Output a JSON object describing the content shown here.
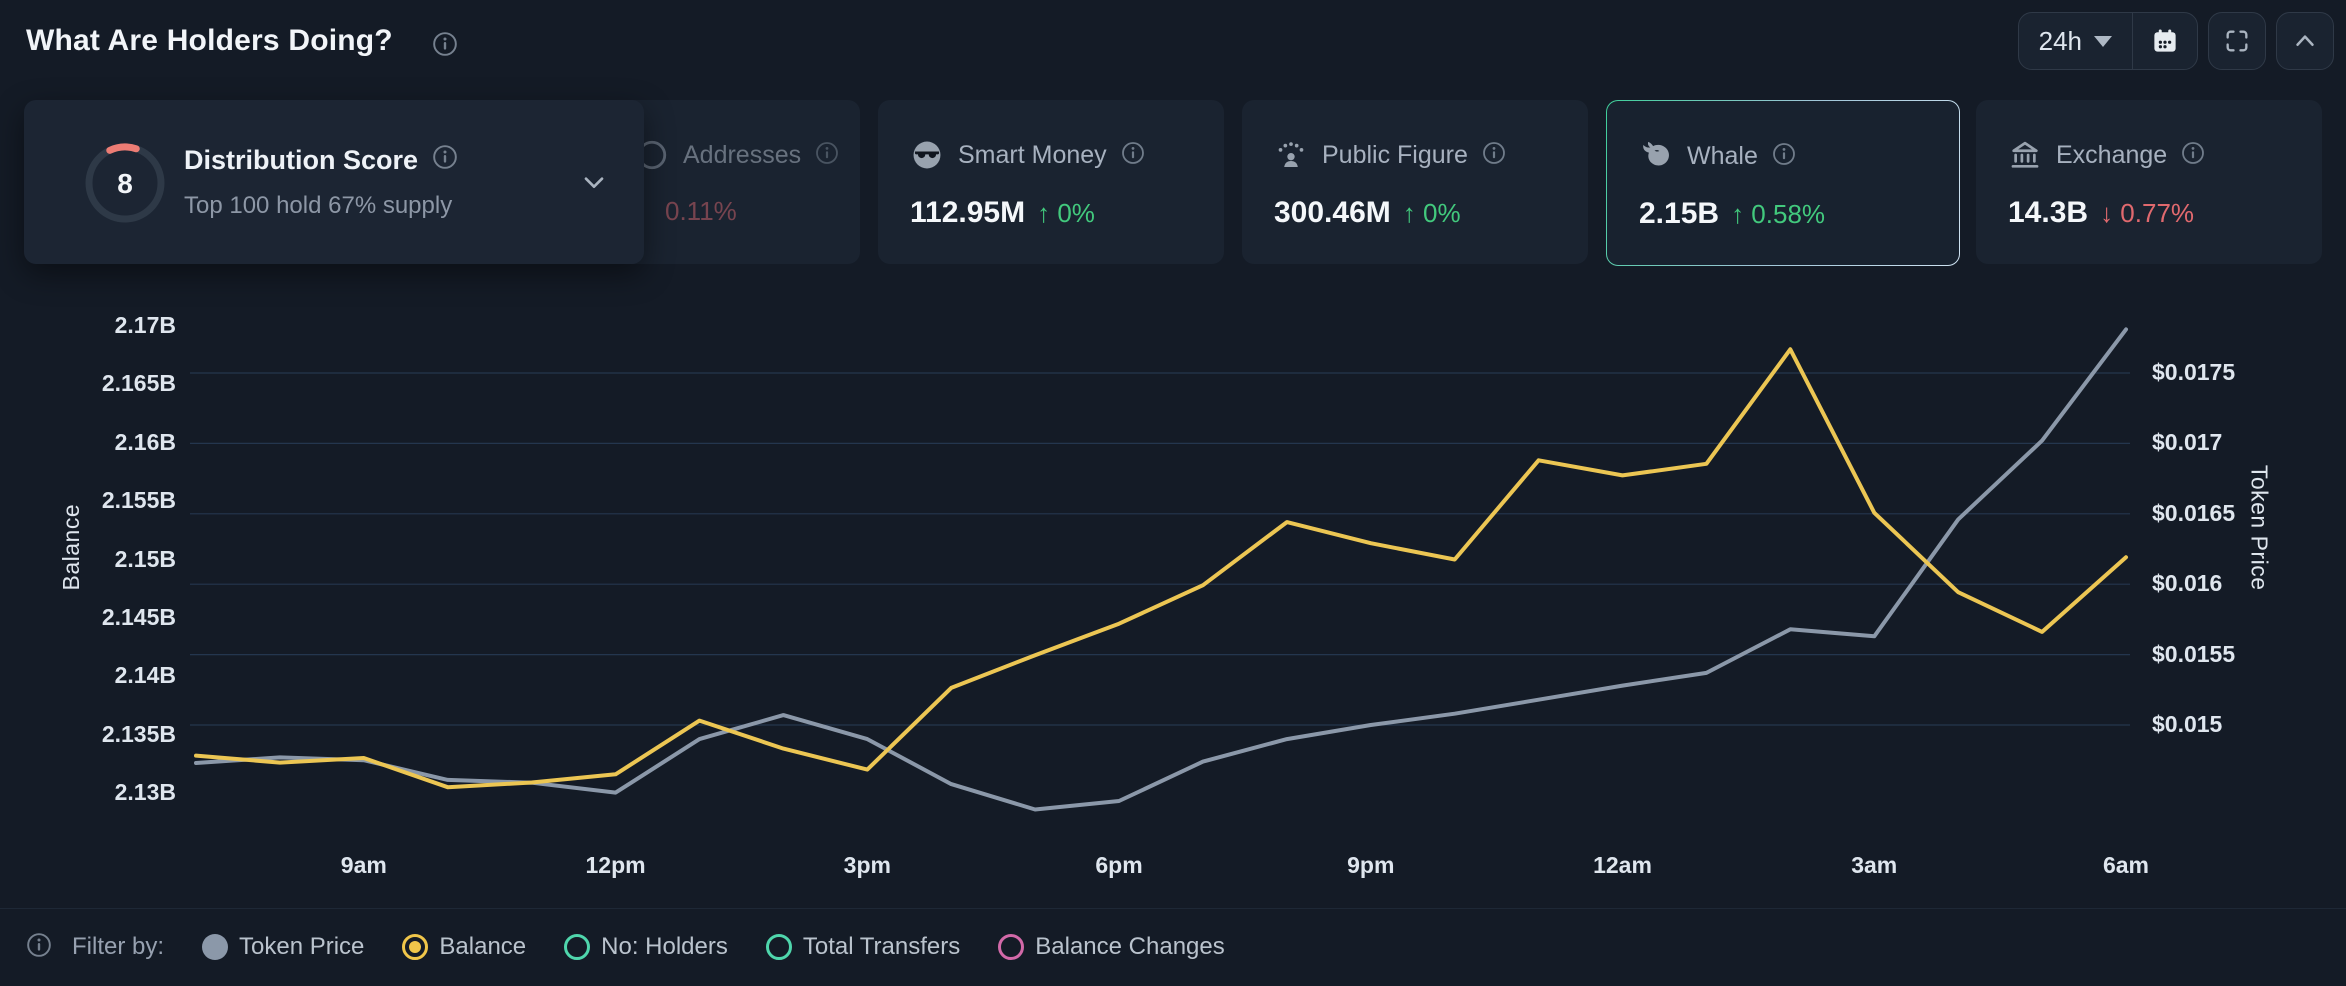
{
  "header": {
    "title": "What Are Holders Doing?",
    "timeframe": "24h"
  },
  "cards": {
    "distribution": {
      "score": "8",
      "title": "Distribution Score",
      "subtitle": "Top 100 hold 67% supply"
    },
    "addresses": {
      "title": "Addresses",
      "change": "0.11%",
      "direction": "down"
    },
    "smart_money": {
      "title": "Smart Money",
      "value": "112.95M",
      "arrow": "↑",
      "change": "0%",
      "direction": "up"
    },
    "public_figure": {
      "title": "Public Figure",
      "value": "300.46M",
      "arrow": "↑",
      "change": "0%",
      "direction": "up"
    },
    "whale": {
      "title": "Whale",
      "value": "2.15B",
      "arrow": "↑",
      "change": "0.58%",
      "direction": "up"
    },
    "exchange": {
      "title": "Exchange",
      "value": "14.3B",
      "arrow": "↓",
      "change": "0.77%",
      "direction": "down"
    }
  },
  "chart_data": {
    "type": "line",
    "x": [
      "7am",
      "8am",
      "9am",
      "10am",
      "11am",
      "12pm",
      "1pm",
      "2pm",
      "3pm",
      "4pm",
      "5pm",
      "6pm",
      "7pm",
      "8pm",
      "9pm",
      "10pm",
      "11pm",
      "12am",
      "1am",
      "2am",
      "3am",
      "4am",
      "5am",
      "6am"
    ],
    "x_ticks_shown": [
      "9am",
      "12pm",
      "3pm",
      "6pm",
      "9pm",
      "12am",
      "3am",
      "6am"
    ],
    "series": [
      {
        "name": "Token Price",
        "axis": "right",
        "color": "#8b98a9",
        "values": [
          0.01473,
          0.01477,
          0.01475,
          0.01461,
          0.01459,
          0.01452,
          0.0149,
          0.01507,
          0.0149,
          0.01458,
          0.0144,
          0.01446,
          0.01474,
          0.0149,
          0.015,
          0.01508,
          0.01518,
          0.01528,
          0.01537,
          0.01568,
          0.01563,
          0.01646,
          0.01702,
          0.01781
        ]
      },
      {
        "name": "Balance",
        "axis": "left",
        "color": "#ecc653",
        "values": [
          2.1332,
          2.1326,
          2.133,
          2.1305,
          2.1309,
          2.1316,
          2.1362,
          2.1338,
          2.132,
          2.139,
          2.1418,
          2.1445,
          2.1478,
          2.1532,
          2.1514,
          2.15,
          2.1585,
          2.1572,
          2.1582,
          2.168,
          2.154,
          2.1472,
          2.1438,
          2.1502
        ]
      }
    ],
    "left_axis": {
      "label": "Balance",
      "min": 2.13,
      "max": 2.17,
      "ticks": [
        {
          "v": 2.13,
          "label": "2.13B"
        },
        {
          "v": 2.135,
          "label": "2.135B"
        },
        {
          "v": 2.14,
          "label": "2.14B"
        },
        {
          "v": 2.145,
          "label": "2.145B"
        },
        {
          "v": 2.15,
          "label": "2.15B"
        },
        {
          "v": 2.155,
          "label": "2.155B"
        },
        {
          "v": 2.16,
          "label": "2.16B"
        },
        {
          "v": 2.165,
          "label": "2.165B"
        },
        {
          "v": 2.17,
          "label": "2.17B"
        }
      ]
    },
    "right_axis": {
      "label": "Token Price",
      "min": 0.015,
      "max": 0.0175,
      "ticks": [
        {
          "v": 0.015,
          "label": "$0.015"
        },
        {
          "v": 0.0155,
          "label": "$0.0155"
        },
        {
          "v": 0.016,
          "label": "$0.016"
        },
        {
          "v": 0.0165,
          "label": "$0.0165"
        },
        {
          "v": 0.017,
          "label": "$0.017"
        },
        {
          "v": 0.0175,
          "label": "$0.0175"
        }
      ]
    },
    "grid": "horizontal",
    "legend_position": "bottom"
  },
  "legend": {
    "label": "Filter by:",
    "items": [
      {
        "label": "Token Price",
        "swatch": "filled",
        "color": "#8b98a9"
      },
      {
        "label": "Balance",
        "swatch": "radio",
        "color": "#f0c64a"
      },
      {
        "label": "No: Holders",
        "swatch": "ring",
        "color": "#4fd6ac"
      },
      {
        "label": "Total Transfers",
        "swatch": "ring",
        "color": "#4fd6ac"
      },
      {
        "label": "Balance Changes",
        "swatch": "ring",
        "color": "#d269a8"
      }
    ]
  },
  "colors": {
    "accent_green": "#42c97d",
    "accent_red": "#e0696e",
    "line_balance": "#ecc653",
    "line_price": "#8b98a9",
    "grid": "#24364e"
  }
}
